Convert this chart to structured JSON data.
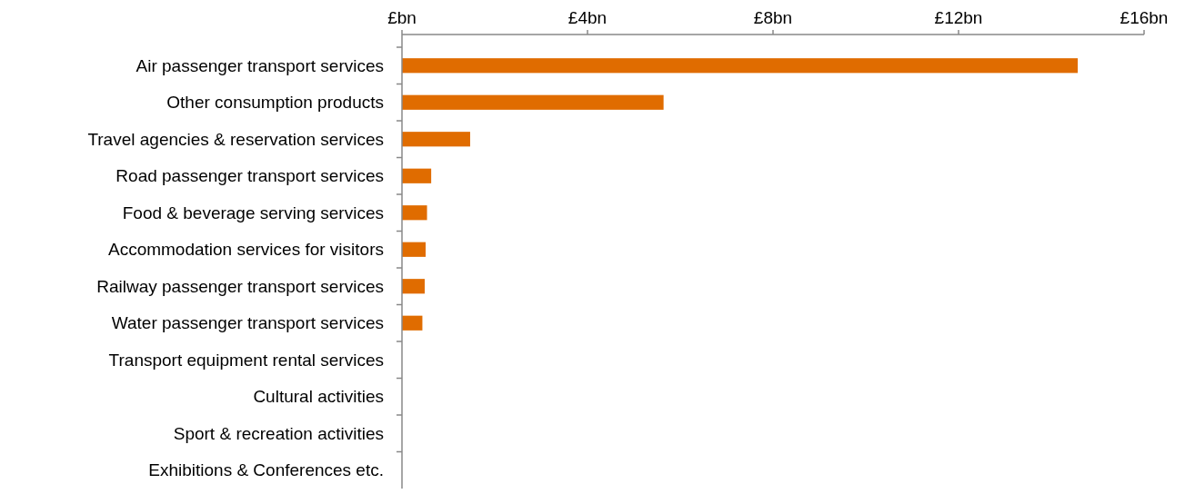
{
  "chart_data": {
    "type": "bar",
    "orientation": "horizontal",
    "categories": [
      "Air passenger transport services",
      "Other consumption products",
      "Travel agencies & reservation services",
      "Road passenger transport services",
      "Food & beverage serving services",
      "Accommodation services for visitors",
      "Railway passenger transport services",
      "Water passenger transport services",
      "Transport equipment rental services",
      "Cultural activities",
      "Sport & recreation activities",
      "Exhibitions & Conferences etc."
    ],
    "values": [
      14.57,
      5.64,
      1.47,
      0.63,
      0.54,
      0.51,
      0.49,
      0.44,
      0,
      0,
      0,
      0
    ],
    "color": "#e06c00",
    "xlim": [
      0,
      16
    ],
    "xticks": [
      {
        "value": 0,
        "label": "£bn"
      },
      {
        "value": 4,
        "label": "£4bn"
      },
      {
        "value": 8,
        "label": "£8bn"
      },
      {
        "value": 12,
        "label": "£12bn"
      },
      {
        "value": 16,
        "label": "£16bn"
      }
    ]
  }
}
